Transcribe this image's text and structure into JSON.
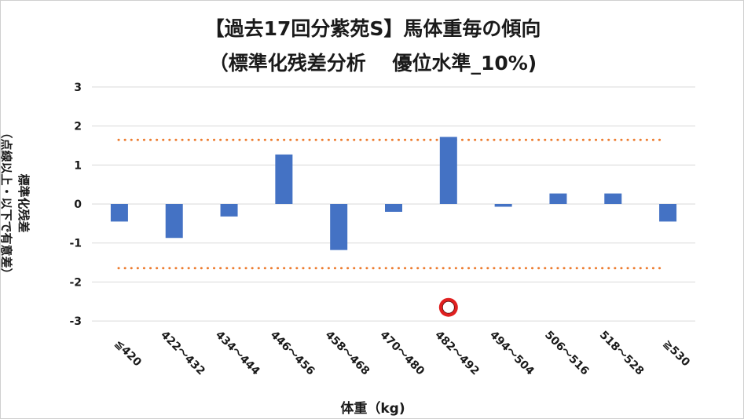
{
  "chart_data": {
    "type": "bar",
    "title": "【過去17回分紫苑S】馬体重毎の傾向",
    "subtitle": "（標準化残差分析　 優位水準_10%)",
    "xlabel": "体重（kg)",
    "ylabel_line1": "標準化残差",
    "ylabel_line2": "（点線以上・以下で有意差）",
    "categories": [
      "≦420",
      "422～432",
      "434～444",
      "446～456",
      "458～468",
      "470～480",
      "482～492",
      "494～504",
      "506～516",
      "518～528",
      "≧530"
    ],
    "values": [
      -0.45,
      -0.87,
      -0.32,
      1.27,
      -1.18,
      -0.2,
      1.72,
      -0.07,
      0.27,
      0.27,
      -0.45
    ],
    "ylim": [
      -3,
      3
    ],
    "yticks": [
      "3",
      "2",
      "1",
      "0",
      "-1",
      "-2",
      "-3"
    ],
    "threshold": 1.645,
    "grid": true,
    "bar_color": "#4472c4",
    "threshold_color": "#ed7d31",
    "marker": {
      "category": "482～492",
      "y": -2.65,
      "ring_color": "#e02020",
      "fill_color": "#ffffff"
    }
  }
}
